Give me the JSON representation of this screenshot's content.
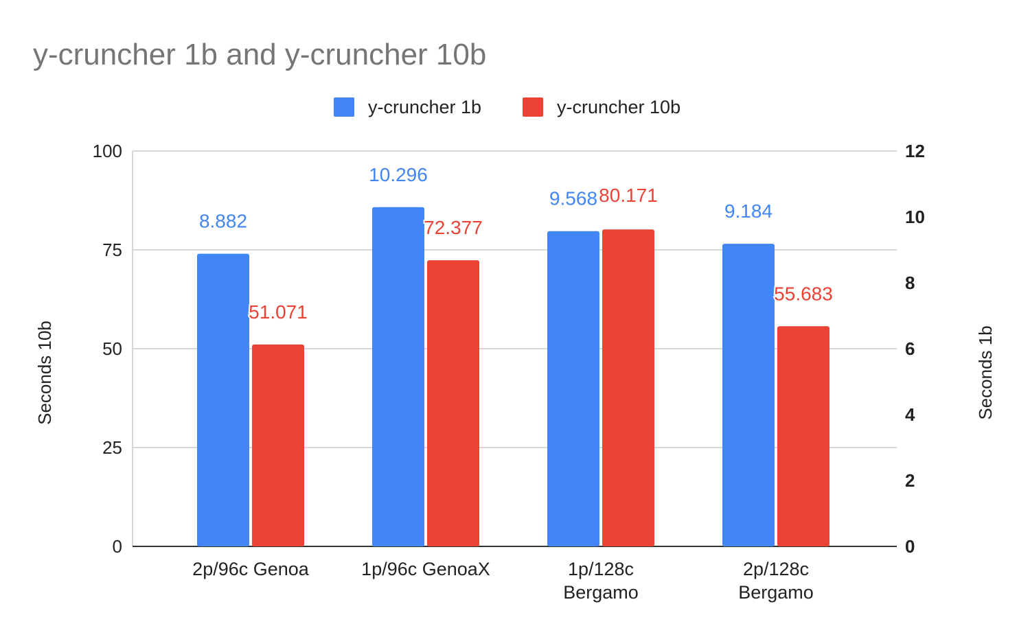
{
  "chart_data": {
    "type": "bar",
    "title": "y-cruncher 1b and y-cruncher 10b",
    "categories": [
      [
        "2p/96c Genoa"
      ],
      [
        "1p/96c GenoaX"
      ],
      [
        "1p/128c",
        "Bergamo"
      ],
      [
        "2p/128c",
        "Bergamo"
      ]
    ],
    "series": [
      {
        "name": "y-cruncher 1b",
        "color": "#4285f4",
        "axis": "right",
        "values": [
          8.882,
          10.296,
          9.568,
          9.184
        ],
        "labels": [
          "8.882",
          "10.296",
          "9.568",
          "9.184"
        ]
      },
      {
        "name": "y-cruncher 10b",
        "color": "#ea4335",
        "axis": "left",
        "values": [
          51.071,
          72.377,
          80.171,
          55.683
        ],
        "labels": [
          "51.071",
          "72.377",
          "80.171",
          "55.683"
        ]
      }
    ],
    "ylabel_left": "Seconds 10b",
    "ylabel_right": "Seconds 1b",
    "ylim_left": [
      0,
      100
    ],
    "yticks_left": [
      "0",
      "25",
      "50",
      "75",
      "100"
    ],
    "ylim_right": [
      0,
      12
    ],
    "yticks_right": [
      "0",
      "2",
      "4",
      "6",
      "8",
      "10",
      "12"
    ],
    "grid": true,
    "legend_position": "top"
  }
}
